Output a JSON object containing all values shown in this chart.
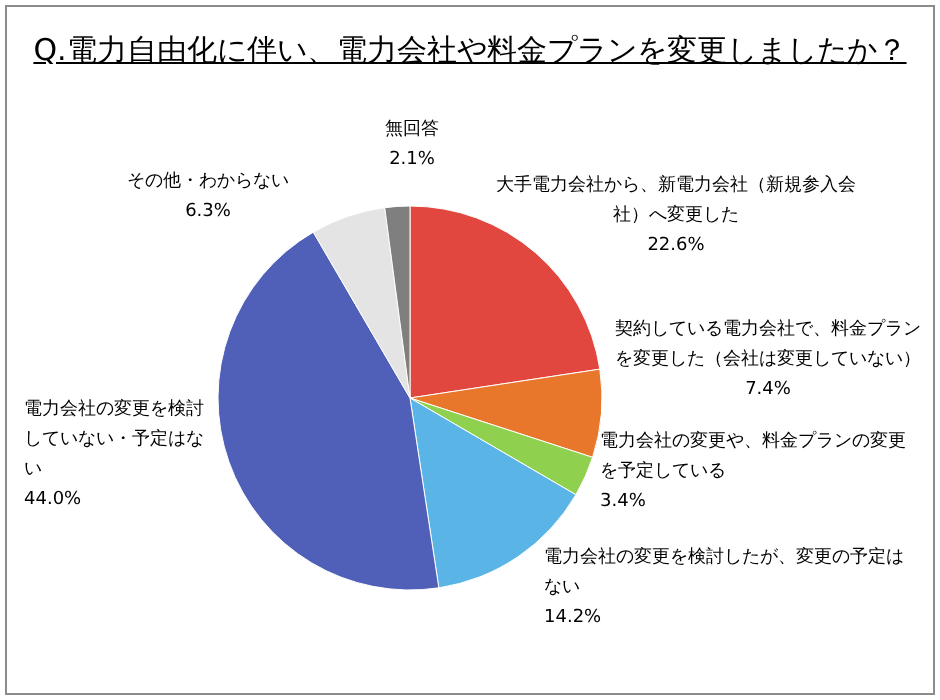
{
  "chart_data": {
    "type": "pie",
    "title": "Q.電力自由化に伴い、電力会社や料金プランを変更しましたか？",
    "categories": [
      "大手電力会社から、新電力会社（新規参入会社）へ変更した",
      "契約している電力会社で、料金プランを変更した（会社は変更していない）",
      "電力会社の変更や、料金プランの変更を予定している",
      "電力会社の変更を検討したが、変更の予定はない",
      "電力会社の変更を検討していない・予定はない",
      "その他・わからない",
      "無回答"
    ],
    "values": [
      22.6,
      7.4,
      3.4,
      14.2,
      44.0,
      6.3,
      2.1
    ],
    "value_labels": [
      "22.6%",
      "7.4%",
      "3.4%",
      "14.2%",
      "44.0%",
      "6.3%",
      "2.1%"
    ],
    "colors": [
      "#e2473f",
      "#e8762b",
      "#8fd14f",
      "#5ab4e5",
      "#5060b8",
      "#e4e4e4",
      "#7f7f7f"
    ]
  }
}
